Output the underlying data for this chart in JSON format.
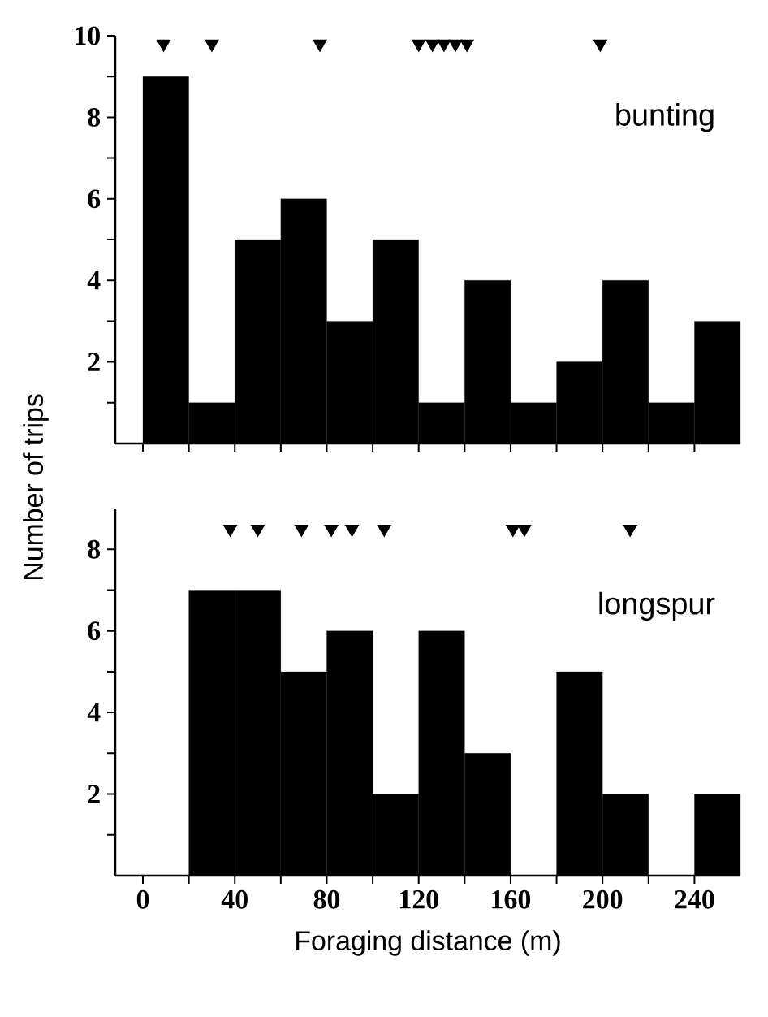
{
  "chart_data": [
    {
      "type": "histogram",
      "ylabel": "Number of trips",
      "annotations": [
        "bunting"
      ],
      "xlim": [
        -12,
        260
      ],
      "ylim": [
        0,
        10
      ],
      "tick_labels": "y",
      "xticks": [
        {
          "value": 0,
          "label": null
        },
        {
          "value": 20,
          "label": null
        },
        {
          "value": 40,
          "label": null
        },
        {
          "value": 60,
          "label": null
        },
        {
          "value": 80,
          "label": null
        },
        {
          "value": 100,
          "label": null
        },
        {
          "value": 120,
          "label": null
        },
        {
          "value": 140,
          "label": null
        },
        {
          "value": 160,
          "label": null
        },
        {
          "value": 180,
          "label": null
        },
        {
          "value": 200,
          "label": null
        },
        {
          "value": 220,
          "label": null
        },
        {
          "value": 240,
          "label": null
        }
      ],
      "yticks": [
        {
          "value": 1,
          "label": null
        },
        2,
        {
          "value": 3,
          "label": null
        },
        4,
        {
          "value": 5,
          "label": null
        },
        6,
        {
          "value": 7,
          "label": null
        },
        8,
        {
          "value": 9,
          "label": null
        },
        10
      ],
      "series": [
        {
          "color": "#000000",
          "bins": [
            0,
            20,
            40,
            60,
            80,
            100,
            120,
            140,
            160,
            180,
            200,
            220,
            240,
            260
          ],
          "values": [
            9,
            1,
            5,
            6,
            3,
            5,
            1,
            4,
            1,
            2,
            4,
            1,
            3
          ]
        },
        {
          "type": "scatter",
          "marker": "triangle",
          "color": "#000000",
          "x": [
            9,
            30,
            77,
            120,
            126,
            131,
            136,
            141,
            199
          ],
          "values": [
            9.8,
            9.8,
            9.8,
            9.8,
            9.8,
            9.8,
            9.8,
            9.8,
            9.8
          ]
        }
      ]
    },
    {
      "type": "histogram",
      "xlabel": "Foraging distance (m)",
      "annotations": [
        "longspur"
      ],
      "xlim": [
        -12,
        260
      ],
      "ylim": [
        0,
        9
      ],
      "xticks": [
        0,
        {
          "value": 20,
          "label": null
        },
        40,
        {
          "value": 60,
          "label": null
        },
        80,
        {
          "value": 100,
          "label": null
        },
        120,
        {
          "value": 140,
          "label": null
        },
        160,
        {
          "value": 180,
          "label": null
        },
        200,
        {
          "value": 220,
          "label": null
        },
        240
      ],
      "yticks": [
        {
          "value": 1,
          "label": null
        },
        2,
        {
          "value": 3,
          "label": null
        },
        4,
        {
          "value": 5,
          "label": null
        },
        6,
        {
          "value": 7,
          "label": null
        },
        8
      ],
      "series": [
        {
          "color": "#000000",
          "bins": [
            0,
            20,
            40,
            60,
            80,
            100,
            120,
            140,
            160,
            180,
            200,
            220,
            240,
            260
          ],
          "values": [
            0,
            7,
            7,
            5,
            6,
            2,
            6,
            3,
            0,
            5,
            2,
            0,
            2
          ]
        },
        {
          "type": "scatter",
          "marker": "triangle",
          "color": "#000000",
          "x": [
            38,
            50,
            69,
            82,
            91,
            105,
            161,
            166,
            212
          ],
          "values": [
            8.5,
            8.5,
            8.5,
            8.5,
            8.5,
            8.5,
            8.5,
            8.5,
            8.5
          ]
        }
      ]
    }
  ]
}
